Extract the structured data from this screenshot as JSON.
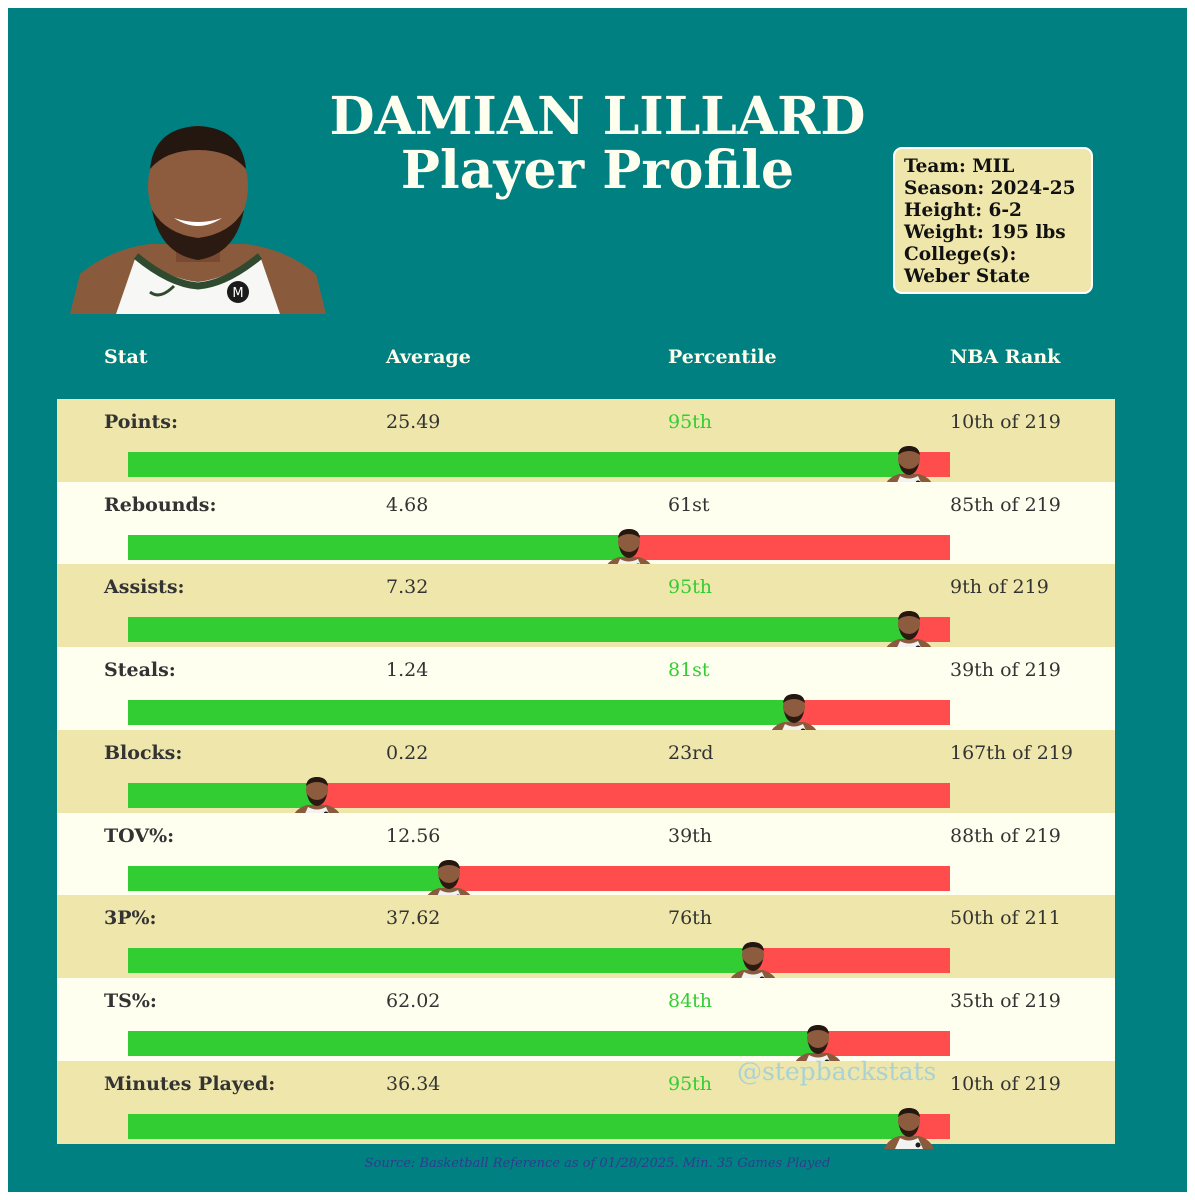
{
  "title_line1": "DAMIAN LILLARD",
  "title_line2": "Player Profile",
  "info": {
    "team": "Team: MIL",
    "season": "Season: 2024-25",
    "height": "Height: 6-2",
    "weight": "Weight: 195 lbs",
    "college_label": "College(s):",
    "college": "Weber State"
  },
  "headers": [
    "Stat",
    "Average",
    "Percentile",
    "NBA Rank"
  ],
  "watermark": "@stepbackstats",
  "source": "Source: Basketball Reference as of 01/28/2025. Min. 35 Games Played",
  "colors": {
    "background": "#008080",
    "row_dark": "#eee6ab",
    "row_light": "#fffff0",
    "bar_good": "#32cd32",
    "bar_bad": "#ff4d4d",
    "elite_text": "#32cd32"
  },
  "chart_data": {
    "type": "bar",
    "orientation": "horizontal",
    "xlim": [
      0,
      100
    ],
    "stats": [
      {
        "label": "Points:",
        "average": "25.49",
        "percentile_label": "95th",
        "percentile": 95,
        "rank": "10th of 219"
      },
      {
        "label": "Rebounds:",
        "average": "4.68",
        "percentile_label": "61st",
        "percentile": 61,
        "rank": "85th of 219"
      },
      {
        "label": "Assists:",
        "average": "7.32",
        "percentile_label": "95th",
        "percentile": 95,
        "rank": "9th of 219"
      },
      {
        "label": "Steals:",
        "average": "1.24",
        "percentile_label": "81st",
        "percentile": 81,
        "rank": "39th of 219"
      },
      {
        "label": "Blocks:",
        "average": "0.22",
        "percentile_label": "23rd",
        "percentile": 23,
        "rank": "167th of 219"
      },
      {
        "label": "TOV%:",
        "average": "12.56",
        "percentile_label": "39th",
        "percentile": 39,
        "rank": "88th of 219"
      },
      {
        "label": "3P%:",
        "average": "37.62",
        "percentile_label": "76th",
        "percentile": 76,
        "rank": "50th of 211"
      },
      {
        "label": "TS%:",
        "average": "62.02",
        "percentile_label": "84th",
        "percentile": 84,
        "rank": "35th of 219"
      },
      {
        "label": "Minutes Played:",
        "average": "36.34",
        "percentile_label": "95th",
        "percentile": 95,
        "rank": "10th of 219"
      }
    ]
  }
}
